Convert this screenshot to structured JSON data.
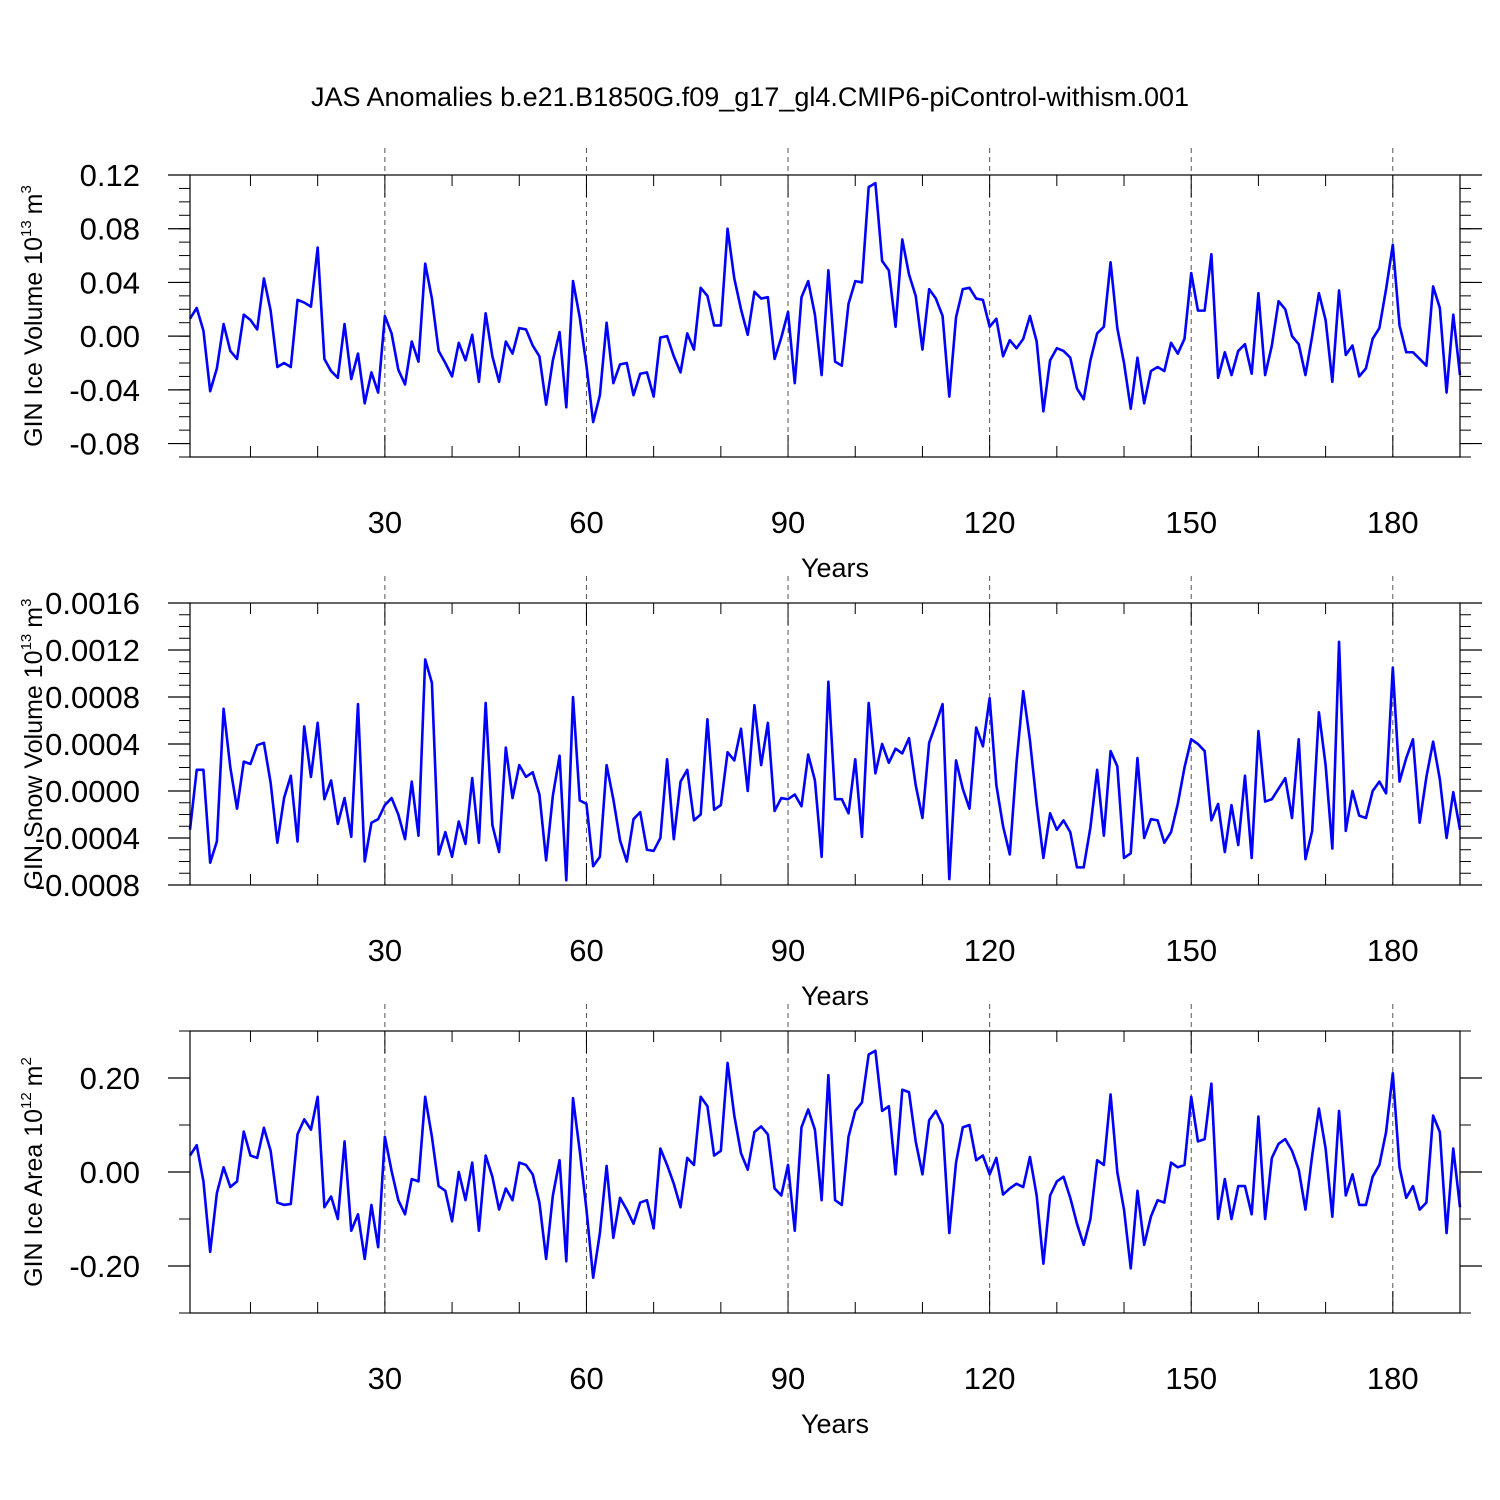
{
  "title": "JAS Anomalies b.e21.B1850G.f09_g17_gl4.CMIP6-piControl-withism.001",
  "line_color": "#0000ff",
  "chart_data": [
    {
      "type": "line",
      "ylabel_main": "GIN Ice Volume 10",
      "ylabel_exp": "13",
      "ylabel_unit": "m",
      "ylabel_unit_exp": "3",
      "xlabel": "Years",
      "xlim": [
        1,
        190
      ],
      "ylim": [
        -0.09,
        0.12
      ],
      "xticks": [
        30,
        60,
        90,
        120,
        150,
        180
      ],
      "yticks": [
        -0.08,
        -0.04,
        0.0,
        0.04,
        0.08,
        0.12
      ],
      "ytick_labels": [
        "-0.08",
        "-0.04",
        "0.00",
        "0.04",
        "0.08",
        "0.12"
      ],
      "ymajor_step": 0.04,
      "yminor_step": 0.01,
      "xminor_step": 10,
      "values": [
        0.013,
        0.021,
        0.004,
        -0.041,
        -0.024,
        0.009,
        -0.011,
        -0.017,
        0.016,
        0.012,
        0.005,
        0.043,
        0.019,
        -0.023,
        -0.02,
        -0.023,
        0.027,
        0.025,
        0.022,
        0.066,
        -0.017,
        -0.026,
        -0.031,
        0.009,
        -0.032,
        -0.013,
        -0.05,
        -0.027,
        -0.042,
        0.015,
        0.002,
        -0.025,
        -0.036,
        -0.004,
        -0.019,
        0.054,
        0.028,
        -0.011,
        -0.02,
        -0.03,
        -0.005,
        -0.018,
        0.001,
        -0.034,
        0.017,
        -0.015,
        -0.034,
        -0.004,
        -0.013,
        0.006,
        0.005,
        -0.007,
        -0.015,
        -0.051,
        -0.018,
        0.003,
        -0.053,
        0.041,
        0.014,
        -0.022,
        -0.064,
        -0.044,
        0.01,
        -0.035,
        -0.021,
        -0.02,
        -0.044,
        -0.028,
        -0.027,
        -0.045,
        -0.001,
        0.0,
        -0.015,
        -0.027,
        0.002,
        -0.01,
        0.036,
        0.03,
        0.008,
        0.008,
        0.08,
        0.043,
        0.02,
        0.001,
        0.033,
        0.028,
        0.029,
        -0.017,
        -0.001,
        0.018,
        -0.035,
        0.029,
        0.041,
        0.016,
        -0.029,
        0.049,
        -0.019,
        -0.022,
        0.024,
        0.041,
        0.04,
        0.111,
        0.114,
        0.056,
        0.049,
        0.007,
        0.072,
        0.046,
        0.03,
        -0.01,
        0.035,
        0.028,
        0.015,
        -0.045,
        0.014,
        0.035,
        0.036,
        0.028,
        0.027,
        0.007,
        0.013,
        -0.015,
        -0.003,
        -0.009,
        -0.002,
        0.015,
        -0.004,
        -0.056,
        -0.018,
        -0.009,
        -0.011,
        -0.016,
        -0.039,
        -0.047,
        -0.018,
        0.002,
        0.007,
        0.055,
        0.006,
        -0.02,
        -0.054,
        -0.016,
        -0.05,
        -0.026,
        -0.023,
        -0.026,
        -0.005,
        -0.013,
        -0.002,
        0.047,
        0.019,
        0.019,
        0.061,
        -0.031,
        -0.012,
        -0.029,
        -0.011,
        -0.006,
        -0.028,
        0.032,
        -0.029,
        -0.007,
        0.026,
        0.02,
        0.0,
        -0.006,
        -0.029,
        0.0,
        0.032,
        0.012,
        -0.034,
        0.034,
        -0.014,
        -0.007,
        -0.03,
        -0.024,
        -0.002,
        0.006,
        0.035,
        0.068,
        0.008,
        -0.012,
        -0.012,
        -0.017,
        -0.022,
        0.037,
        0.021,
        -0.042,
        0.016,
        -0.029
      ]
    },
    {
      "type": "line",
      "ylabel_main": "GIN Snow Volume 10",
      "ylabel_exp": "13",
      "ylabel_unit": "m",
      "ylabel_unit_exp": "3",
      "xlabel": "Years",
      "xlim": [
        1,
        190
      ],
      "ylim": [
        -0.0008,
        0.0016
      ],
      "xticks": [
        30,
        60,
        90,
        120,
        150,
        180
      ],
      "yticks": [
        -0.0008,
        -0.0004,
        0.0,
        0.0004,
        0.0008,
        0.0012,
        0.0016
      ],
      "ytick_labels": [
        "-0.0008",
        "-0.0004",
        "0.0000",
        "0.0004",
        "0.0008",
        "0.0012",
        "0.0016"
      ],
      "ymajor_step": 0.0004,
      "yminor_step": 0.0001,
      "xminor_step": 10,
      "values": [
        -0.00033,
        0.00018,
        0.00018,
        -0.00061,
        -0.00043,
        0.0007,
        0.0002,
        -0.00015,
        0.00025,
        0.00023,
        0.00039,
        0.00041,
        7e-05,
        -0.00044,
        -6e-05,
        0.00013,
        -0.00043,
        0.00055,
        0.00012,
        0.00058,
        -7e-05,
        9e-05,
        -0.00028,
        -6e-05,
        -0.00039,
        0.00074,
        -0.0006,
        -0.00027,
        -0.00024,
        -0.00012,
        -6e-05,
        -0.0002,
        -0.00041,
        8e-05,
        -0.00038,
        0.00112,
        0.00092,
        -0.00054,
        -0.00035,
        -0.00056,
        -0.00026,
        -0.00045,
        0.00011,
        -0.00044,
        0.00075,
        -0.00029,
        -0.00052,
        0.00037,
        -6e-05,
        0.00022,
        0.00012,
        0.00016,
        -3e-05,
        -0.00059,
        -4e-05,
        0.0003,
        -0.00076,
        0.0008,
        -8e-05,
        -0.00011,
        -0.00064,
        -0.00056,
        0.00022,
        -7e-05,
        -0.00042,
        -0.0006,
        -0.00024,
        -0.00018,
        -0.0005,
        -0.00051,
        -0.0004,
        0.00027,
        -0.00041,
        8e-05,
        0.00018,
        -0.00025,
        -0.0002,
        0.00061,
        -0.00016,
        -0.00012,
        0.00033,
        0.00026,
        0.00053,
        0.0,
        0.00073,
        0.00022,
        0.00058,
        -0.00017,
        -6e-05,
        -7e-05,
        -3e-05,
        -0.00013,
        0.00031,
        9e-05,
        -0.00056,
        0.00093,
        -7e-05,
        -7e-05,
        -0.00019,
        0.00027,
        -0.00039,
        0.00075,
        0.00015,
        0.0004,
        0.00024,
        0.00036,
        0.00032,
        0.00045,
        5e-05,
        -0.00023,
        0.00041,
        0.00057,
        0.00074,
        -0.00075,
        0.00026,
        2e-05,
        -0.00015,
        0.00054,
        0.00038,
        0.00079,
        5e-05,
        -0.0003,
        -0.00054,
        0.00024,
        0.00085,
        0.00043,
        -0.00011,
        -0.00057,
        -0.00019,
        -0.00033,
        -0.00025,
        -0.00035,
        -0.00065,
        -0.00065,
        -0.00031,
        0.00018,
        -0.00038,
        0.00034,
        0.00021,
        -0.00057,
        -0.00053,
        0.00028,
        -0.0004,
        -0.00024,
        -0.00025,
        -0.00044,
        -0.00035,
        -0.00011,
        0.0002,
        0.00044,
        0.0004,
        0.00034,
        -0.00025,
        -0.00011,
        -0.00052,
        -0.00012,
        -0.00046,
        0.00013,
        -0.00057,
        0.00051,
        -9e-05,
        -7e-05,
        2e-05,
        0.00011,
        -0.00023,
        0.00044,
        -0.00058,
        -0.00034,
        0.00067,
        0.00022,
        -0.00049,
        0.00127,
        -0.00034,
        0.0,
        -0.00021,
        -0.00023,
        0.0,
        8e-05,
        -2e-05,
        0.00105,
        8e-05,
        0.00028,
        0.00044,
        -0.00027,
        0.00012,
        0.00042,
        0.0001,
        -0.0004,
        -1e-05,
        -0.00033
      ]
    },
    {
      "type": "line",
      "ylabel_main": "GIN Ice Area 10",
      "ylabel_exp": "12",
      "ylabel_unit": "m",
      "ylabel_unit_exp": "2",
      "xlabel": "Years",
      "xlim": [
        1,
        190
      ],
      "ylim": [
        -0.3,
        0.3
      ],
      "xticks": [
        30,
        60,
        90,
        120,
        150,
        180
      ],
      "yticks": [
        -0.2,
        0.0,
        0.2
      ],
      "ytick_labels": [
        "-0.20",
        "0.00",
        "0.20"
      ],
      "ymajor_step": 0.2,
      "yminor_step": 0.1,
      "xminor_step": 10,
      "values": [
        0.035,
        0.057,
        -0.02,
        -0.17,
        -0.045,
        0.01,
        -0.032,
        -0.02,
        0.086,
        0.035,
        0.03,
        0.094,
        0.045,
        -0.065,
        -0.07,
        -0.068,
        0.08,
        0.112,
        0.09,
        0.16,
        -0.075,
        -0.052,
        -0.1,
        0.065,
        -0.125,
        -0.09,
        -0.185,
        -0.07,
        -0.16,
        0.075,
        0.002,
        -0.06,
        -0.09,
        -0.015,
        -0.02,
        0.16,
        0.075,
        -0.03,
        -0.04,
        -0.105,
        0.0,
        -0.06,
        0.02,
        -0.125,
        0.035,
        -0.01,
        -0.08,
        -0.035,
        -0.06,
        0.02,
        0.015,
        -0.005,
        -0.065,
        -0.185,
        -0.05,
        0.025,
        -0.19,
        0.157,
        0.045,
        -0.08,
        -0.225,
        -0.13,
        0.013,
        -0.14,
        -0.055,
        -0.08,
        -0.11,
        -0.065,
        -0.06,
        -0.12,
        0.05,
        0.015,
        -0.025,
        -0.075,
        0.03,
        0.015,
        0.16,
        0.14,
        0.035,
        0.045,
        0.232,
        0.12,
        0.04,
        0.005,
        0.085,
        0.097,
        0.08,
        -0.035,
        -0.05,
        0.015,
        -0.125,
        0.095,
        0.133,
        0.09,
        -0.06,
        0.206,
        -0.06,
        -0.07,
        0.075,
        0.13,
        0.148,
        0.25,
        0.258,
        0.13,
        0.14,
        -0.005,
        0.175,
        0.17,
        0.065,
        -0.005,
        0.11,
        0.13,
        0.1,
        -0.13,
        0.02,
        0.095,
        0.1,
        0.025,
        0.035,
        -0.005,
        0.03,
        -0.048,
        -0.035,
        -0.025,
        -0.032,
        0.032,
        -0.05,
        -0.195,
        -0.05,
        -0.02,
        -0.01,
        -0.055,
        -0.11,
        -0.155,
        -0.1,
        0.025,
        0.015,
        0.165,
        0.0,
        -0.08,
        -0.205,
        -0.04,
        -0.155,
        -0.095,
        -0.06,
        -0.065,
        0.02,
        0.01,
        0.015,
        0.16,
        0.065,
        0.07,
        0.188,
        -0.1,
        -0.015,
        -0.1,
        -0.03,
        -0.03,
        -0.09,
        0.118,
        -0.1,
        0.03,
        0.06,
        0.07,
        0.045,
        0.005,
        -0.08,
        0.035,
        0.135,
        0.05,
        -0.095,
        0.13,
        -0.05,
        -0.005,
        -0.07,
        -0.07,
        -0.01,
        0.015,
        0.085,
        0.21,
        0.01,
        -0.055,
        -0.03,
        -0.08,
        -0.065,
        0.12,
        0.085,
        -0.13,
        0.05,
        -0.075
      ]
    }
  ]
}
